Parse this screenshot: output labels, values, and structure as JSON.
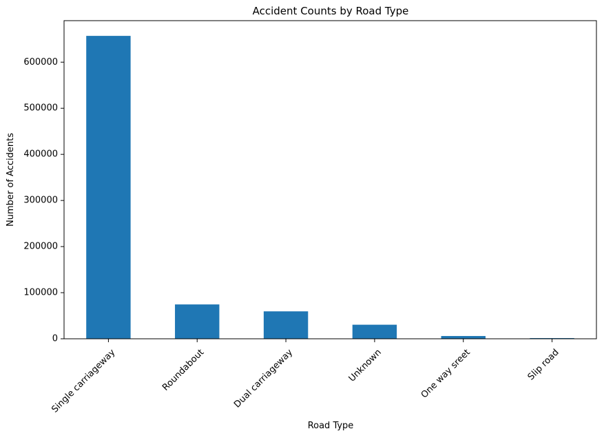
{
  "chart_data": {
    "type": "bar",
    "title": "Accident Counts by Road Type",
    "xlabel": "Road Type",
    "ylabel": "Number of Accidents",
    "categories": [
      "Single carriageway",
      "Roundabout",
      "Dual carriageway",
      "Unknown",
      "One way sreet",
      "Slip road"
    ],
    "values": [
      657000,
      74500,
      59500,
      30500,
      6000,
      1500
    ],
    "ylim": [
      0,
      690000
    ],
    "yticks": [
      0,
      100000,
      200000,
      300000,
      400000,
      500000,
      600000
    ],
    "grid": false,
    "legend": "none",
    "bar_color": "#1f77b4"
  }
}
